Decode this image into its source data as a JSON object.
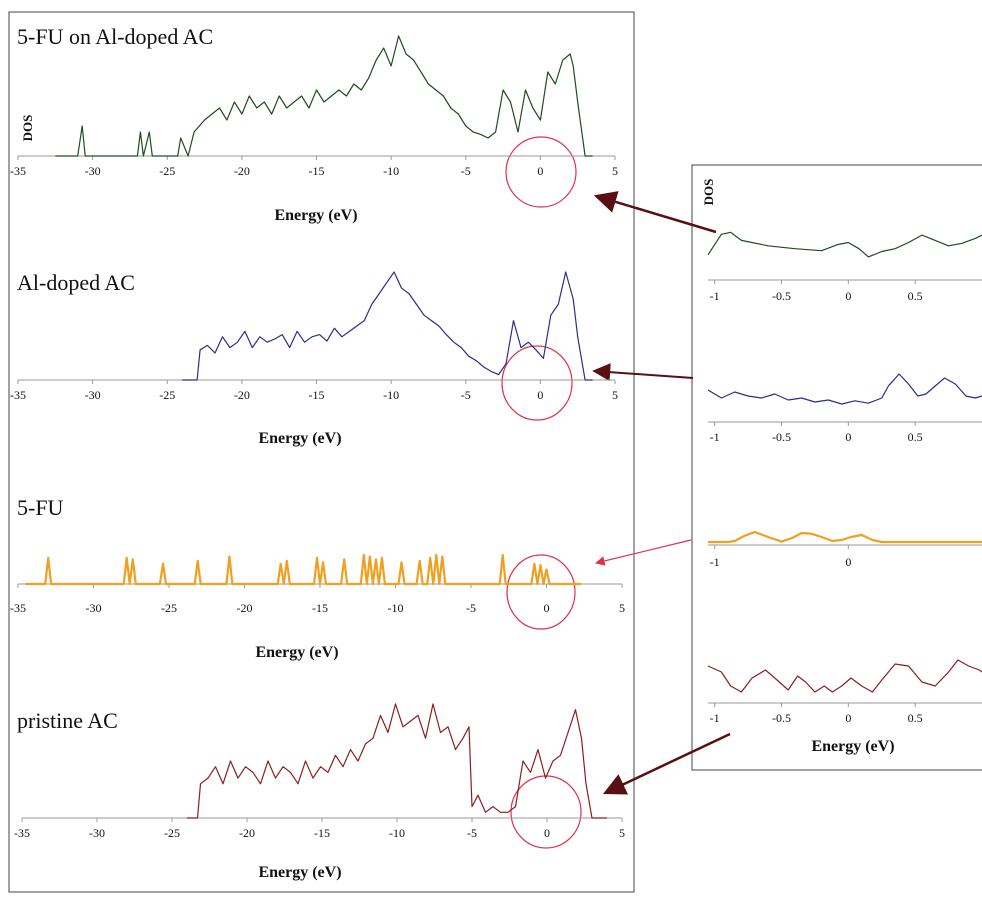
{
  "colors": {
    "green": "#1f4d20",
    "blue": "#2a2f86",
    "orange": "#f0a020",
    "darkred": "#8a1f1f",
    "circle": "#e0304a",
    "arrow": "#5a0f12",
    "axis": "#9a9a9a"
  },
  "chart_data": [
    {
      "id": "p1",
      "type": "line",
      "panel": "main",
      "title": "5-FU on Al-doped AC",
      "xlabel": "Energy (eV)",
      "ylabel": "DOS",
      "xlim": [
        -35,
        5
      ],
      "ylim": [
        0,
        1
      ],
      "ticks": [
        "-35",
        "-30",
        "-25",
        "-20",
        "-15",
        "-10",
        "-5",
        "0",
        "5"
      ],
      "series": [
        {
          "color": "green",
          "x": [
            -32.5,
            -31,
            -30.7,
            -30.5,
            -27,
            -26.8,
            -26.6,
            -26.2,
            -26,
            -25.8,
            -24.3,
            -24.1,
            -23.6,
            -23.2,
            -22.5,
            -22,
            -21.5,
            -21,
            -20.5,
            -20,
            -19.5,
            -19,
            -18.5,
            -18,
            -17.5,
            -17,
            -16.5,
            -16,
            -15.5,
            -15,
            -14.5,
            -14,
            -13.5,
            -13,
            -12.5,
            -12,
            -11.5,
            -11,
            -10.5,
            -10,
            -9.5,
            -9,
            -8.5,
            -8,
            -7.5,
            -7,
            -6.5,
            -6,
            -5.5,
            -5,
            -4.5,
            -4,
            -3.5,
            -3,
            -2.5,
            -2,
            -1.5,
            -1,
            -0.5,
            0,
            0.5,
            1,
            1.5,
            2,
            2.2,
            2.5,
            3,
            3.5
          ],
          "y": [
            0,
            0,
            0.25,
            0,
            0,
            0.2,
            0,
            0.2,
            0,
            0,
            0,
            0.15,
            0,
            0.2,
            0.3,
            0.35,
            0.4,
            0.3,
            0.45,
            0.35,
            0.5,
            0.4,
            0.45,
            0.35,
            0.5,
            0.4,
            0.45,
            0.5,
            0.4,
            0.55,
            0.45,
            0.5,
            0.55,
            0.5,
            0.6,
            0.55,
            0.65,
            0.8,
            0.9,
            0.75,
            1.0,
            0.85,
            0.8,
            0.7,
            0.6,
            0.55,
            0.5,
            0.4,
            0.35,
            0.25,
            0.2,
            0.18,
            0.15,
            0.2,
            0.55,
            0.45,
            0.2,
            0.55,
            0.4,
            0.3,
            0.7,
            0.6,
            0.8,
            0.85,
            0.75,
            0.45,
            0,
            0
          ]
        }
      ]
    },
    {
      "id": "p2",
      "type": "line",
      "panel": "main",
      "title": "Al-doped AC",
      "xlabel": "Energy (eV)",
      "xlim": [
        -35,
        5
      ],
      "ylim": [
        0,
        1
      ],
      "ticks": [
        "-35",
        "-30",
        "-25",
        "-20",
        "-15",
        "-10",
        "-5",
        "0",
        "5"
      ],
      "series": [
        {
          "color": "blue",
          "x": [
            -24,
            -23,
            -22.8,
            -22.3,
            -21.8,
            -21.3,
            -20.8,
            -20.3,
            -19.8,
            -19.3,
            -18.8,
            -18.3,
            -17.8,
            -17.3,
            -16.8,
            -16.3,
            -15.8,
            -15.3,
            -14.8,
            -14.3,
            -13.8,
            -13.3,
            -12.8,
            -12.3,
            -11.8,
            -11.3,
            -10.8,
            -10.3,
            -9.8,
            -9.3,
            -8.8,
            -8.3,
            -7.8,
            -7.3,
            -6.8,
            -6.3,
            -5.8,
            -5.3,
            -4.8,
            -4.3,
            -3.8,
            -3.3,
            -2.8,
            -2.3,
            -1.8,
            -1.3,
            -0.8,
            -0.3,
            0.2,
            0.7,
            1.2,
            1.7,
            2.2,
            2.5,
            3,
            3.5
          ],
          "y": [
            0,
            0,
            0.28,
            0.32,
            0.25,
            0.4,
            0.3,
            0.35,
            0.45,
            0.3,
            0.4,
            0.35,
            0.38,
            0.42,
            0.3,
            0.45,
            0.35,
            0.4,
            0.42,
            0.36,
            0.48,
            0.4,
            0.45,
            0.5,
            0.55,
            0.7,
            0.8,
            0.9,
            1.0,
            0.85,
            0.8,
            0.7,
            0.6,
            0.55,
            0.5,
            0.42,
            0.35,
            0.3,
            0.22,
            0.18,
            0.12,
            0.08,
            0.05,
            0.15,
            0.55,
            0.3,
            0.35,
            0.28,
            0.2,
            0.6,
            0.7,
            1.0,
            0.75,
            0.4,
            0,
            0
          ]
        }
      ]
    },
    {
      "id": "p3",
      "type": "line",
      "panel": "main",
      "title": "5-FU",
      "xlabel": "Energy (eV)",
      "xlim": [
        -35,
        5
      ],
      "ylim": [
        0,
        1
      ],
      "ticks": [
        "-35",
        "-30",
        "-25",
        "-20",
        "-15",
        "-10",
        "-5",
        "0",
        "5"
      ],
      "series": [
        {
          "color": "orange",
          "x": [
            -34.5,
            -33.2,
            -33,
            -32.8,
            -28,
            -27.8,
            -27.6,
            -27.4,
            -27.2,
            -27,
            -25.6,
            -25.4,
            -25.2,
            -23.3,
            -23.1,
            -22.9,
            -21.2,
            -21,
            -20.8,
            -17.8,
            -17.6,
            -17.4,
            -17.2,
            -17,
            -16.8,
            -15.4,
            -15.2,
            -15,
            -14.8,
            -14.6,
            -13.6,
            -13.4,
            -13.2,
            -12.3,
            -12.1,
            -11.9,
            -11.7,
            -11.5,
            -11.3,
            -11.1,
            -10.9,
            -10.7,
            -10.5,
            -9.8,
            -9.6,
            -9.4,
            -8.6,
            -8.4,
            -8.2,
            -7.9,
            -7.7,
            -7.5,
            -7.3,
            -7.1,
            -6.9,
            -6.7,
            -6.5,
            -3.1,
            -2.9,
            -2.7,
            -1,
            -0.8,
            -0.6,
            -0.4,
            -0.2,
            0,
            0.2,
            2.3
          ],
          "y": [
            0,
            0,
            0.9,
            0,
            0,
            0.9,
            0,
            0.85,
            0,
            0,
            0,
            0.7,
            0,
            0,
            0.8,
            0,
            0,
            0.95,
            0,
            0,
            0.7,
            0,
            0.8,
            0,
            0,
            0,
            0.9,
            0,
            0.75,
            0,
            0,
            0.85,
            0,
            0,
            1.0,
            0,
            0.95,
            0,
            0.85,
            0,
            0.9,
            0,
            0,
            0,
            0.75,
            0,
            0,
            0.8,
            0,
            0,
            0.9,
            0,
            1.0,
            0,
            0.95,
            0,
            0,
            0,
            1.0,
            0,
            0,
            0.7,
            0,
            0.65,
            0,
            0.5,
            0,
            0
          ]
        }
      ]
    },
    {
      "id": "p4",
      "type": "line",
      "panel": "main",
      "title": "pristine AC",
      "xlabel": "Energy (eV)",
      "xlim": [
        -35,
        5
      ],
      "ylim": [
        0,
        1
      ],
      "ticks": [
        "-35",
        "-30",
        "-25",
        "-20",
        "-15",
        "-10",
        "-5",
        "0",
        "5"
      ],
      "series": [
        {
          "color": "darkred",
          "x": [
            -24,
            -23.3,
            -23.1,
            -22.6,
            -22.1,
            -21.6,
            -21.1,
            -20.6,
            -20.1,
            -19.6,
            -19.1,
            -18.6,
            -18.1,
            -17.6,
            -17.1,
            -16.6,
            -16.1,
            -15.6,
            -15.1,
            -14.6,
            -14.1,
            -13.6,
            -13.1,
            -12.6,
            -12.1,
            -11.6,
            -11.1,
            -10.6,
            -10.1,
            -9.6,
            -9.1,
            -8.6,
            -8.1,
            -7.6,
            -7.1,
            -6.6,
            -6.1,
            -5.6,
            -5.2,
            -5,
            -4.6,
            -4.1,
            -3.6,
            -3.1,
            -2.6,
            -2.1,
            -1.6,
            -1.1,
            -0.6,
            -0.1,
            0.4,
            0.9,
            1.4,
            1.9,
            2.3,
            2.6,
            3,
            4
          ],
          "y": [
            0,
            0,
            0.3,
            0.35,
            0.45,
            0.3,
            0.5,
            0.35,
            0.45,
            0.4,
            0.3,
            0.5,
            0.35,
            0.45,
            0.4,
            0.3,
            0.5,
            0.35,
            0.45,
            0.4,
            0.55,
            0.45,
            0.6,
            0.5,
            0.65,
            0.7,
            0.9,
            0.75,
            1.0,
            0.8,
            0.85,
            0.9,
            0.7,
            1.0,
            0.75,
            0.8,
            0.6,
            0.7,
            0.8,
            0.1,
            0.2,
            0.05,
            0.1,
            0.05,
            0.05,
            0.1,
            0.5,
            0.4,
            0.6,
            0.35,
            0.5,
            0.55,
            0.75,
            0.95,
            0.7,
            0.3,
            0,
            0
          ]
        }
      ]
    },
    {
      "id": "z1",
      "type": "line",
      "panel": "zoom",
      "ylabel": "DOS",
      "xlim": [
        -1.05,
        1.0
      ],
      "ticks": [
        "-1",
        "-0.5",
        "0",
        "0.5"
      ],
      "series": [
        {
          "color": "green",
          "x": [
            -1.05,
            -0.95,
            -0.88,
            -0.8,
            -0.6,
            -0.4,
            -0.2,
            -0.08,
            0,
            0.08,
            0.15,
            0.25,
            0.35,
            0.45,
            0.55,
            0.65,
            0.75,
            0.85,
            0.95,
            1.0
          ],
          "y": [
            0.2,
            0.7,
            0.75,
            0.55,
            0.42,
            0.35,
            0.3,
            0.45,
            0.5,
            0.35,
            0.15,
            0.28,
            0.35,
            0.5,
            0.68,
            0.55,
            0.42,
            0.48,
            0.6,
            0.68
          ]
        }
      ]
    },
    {
      "id": "z2",
      "type": "line",
      "panel": "zoom",
      "xlim": [
        -1.05,
        1.0
      ],
      "ticks": [
        "-1",
        "-0.5",
        "0",
        "0.5"
      ],
      "series": [
        {
          "color": "blue",
          "x": [
            -1.05,
            -0.95,
            -0.85,
            -0.75,
            -0.65,
            -0.55,
            -0.45,
            -0.35,
            -0.25,
            -0.15,
            -0.05,
            0.05,
            0.15,
            0.25,
            0.3,
            0.38,
            0.45,
            0.52,
            0.58,
            0.65,
            0.72,
            0.8,
            0.88,
            0.95,
            1.0
          ],
          "y": [
            0.45,
            0.25,
            0.4,
            0.3,
            0.25,
            0.35,
            0.2,
            0.25,
            0.15,
            0.2,
            0.1,
            0.18,
            0.12,
            0.25,
            0.55,
            0.85,
            0.6,
            0.3,
            0.35,
            0.55,
            0.75,
            0.6,
            0.3,
            0.25,
            0.3
          ]
        }
      ]
    },
    {
      "id": "z3",
      "type": "line",
      "panel": "zoom",
      "xlim": [
        -1.05,
        1.0
      ],
      "ticks": [
        "-1",
        "0"
      ],
      "series": [
        {
          "color": "orange",
          "x": [
            -1.05,
            -0.9,
            -0.85,
            -0.78,
            -0.7,
            -0.6,
            -0.5,
            -0.42,
            -0.35,
            -0.28,
            -0.2,
            -0.12,
            -0.05,
            0.02,
            0.1,
            0.18,
            0.25,
            0.35,
            0.5,
            0.7,
            1.0
          ],
          "y": [
            0,
            0,
            0.05,
            0.3,
            0.5,
            0.25,
            0.02,
            0.2,
            0.45,
            0.42,
            0.25,
            0.05,
            0.1,
            0.25,
            0.35,
            0.1,
            0,
            0,
            0,
            0,
            0
          ]
        }
      ]
    },
    {
      "id": "z4",
      "type": "line",
      "panel": "zoom",
      "xlabel": "Energy (eV)",
      "xlim": [
        -1.05,
        1.0
      ],
      "ticks": [
        "-1",
        "-0.5",
        "0",
        "0.5"
      ],
      "series": [
        {
          "color": "darkred",
          "x": [
            -1.05,
            -0.95,
            -0.88,
            -0.8,
            -0.72,
            -0.62,
            -0.55,
            -0.45,
            -0.38,
            -0.32,
            -0.25,
            -0.18,
            -0.12,
            -0.05,
            0.02,
            0.1,
            0.18,
            0.25,
            0.35,
            0.45,
            0.55,
            0.65,
            0.75,
            0.82,
            0.9,
            0.98,
            1.0
          ],
          "y": [
            0.7,
            0.55,
            0.2,
            0.05,
            0.4,
            0.6,
            0.4,
            0.1,
            0.45,
            0.3,
            0.05,
            0.2,
            0.05,
            0.2,
            0.4,
            0.2,
            0.05,
            0.35,
            0.75,
            0.7,
            0.3,
            0.2,
            0.55,
            0.85,
            0.7,
            0.6,
            0.55
          ]
        }
      ]
    }
  ]
}
